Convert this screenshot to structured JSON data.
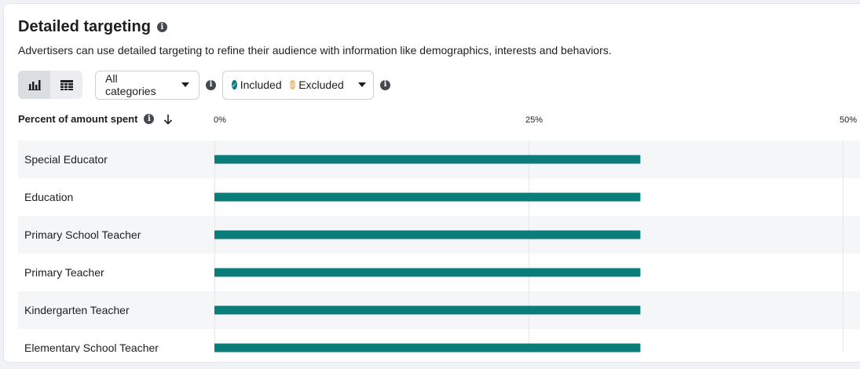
{
  "header": {
    "title": "Detailed targeting",
    "description": "Advertisers can use detailed targeting to refine their audience with information like demographics, interests and behaviors."
  },
  "toolbar": {
    "views": [
      "bar-chart-icon",
      "table-icon"
    ],
    "category_select": "All categories",
    "included_label": "Included",
    "excluded_label": "Excluded"
  },
  "table_header": {
    "metric_label": "Percent of amount spent"
  },
  "colors": {
    "bar": "#0a7c7a",
    "included": "#0a7c7a",
    "excluded": "#f0b26b",
    "row_alt": "#f5f6f7",
    "gridline": "#e4e6eb"
  },
  "chart_data": {
    "type": "bar",
    "orientation": "horizontal",
    "categories": [
      "Special Educator",
      "Education",
      "Primary School Teacher",
      "Primary Teacher",
      "Kindergarten Teacher",
      "Elementary School Teacher"
    ],
    "values": [
      33.9,
      33.9,
      33.9,
      33.9,
      33.9,
      33.9
    ],
    "xlim": [
      0,
      50
    ],
    "x_ticks": [
      0,
      25,
      50
    ],
    "x_tick_labels": [
      "0%",
      "25%",
      "50%"
    ],
    "grid": true
  }
}
